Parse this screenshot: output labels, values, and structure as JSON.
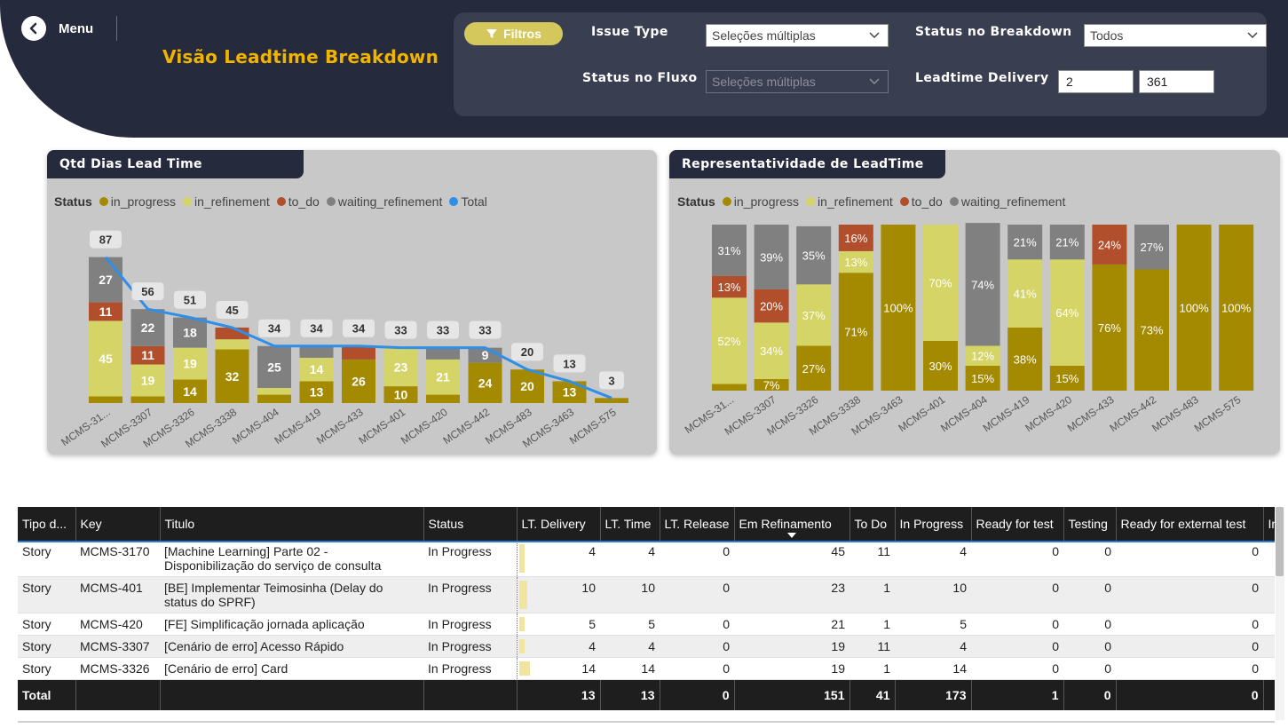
{
  "header": {
    "menu_label": "Menu",
    "page_title": "Visão Leadtime Breakdown",
    "filter_button_label": "Filtros",
    "filters": {
      "issue_type_label": "Issue Type",
      "issue_type_value": "Seleções múltiplas",
      "status_breakdown_label": "Status no Breakdown",
      "status_breakdown_value": "Todos",
      "status_fluxo_label": "Status no Fluxo",
      "status_fluxo_value": "Seleções múltiplas",
      "leadtime_label": "Leadtime Delivery",
      "leadtime_min": "2",
      "leadtime_max": "361"
    }
  },
  "colors": {
    "in_progress": "#a48a00",
    "in_refinement": "#d5d466",
    "to_do": "#b14e2b",
    "waiting_refinement": "#808080",
    "total": "#2f8fe8"
  },
  "chart_data": [
    {
      "type": "bar",
      "stacked": true,
      "title": "Qtd Dias Lead Time",
      "legend_title": "Status",
      "legend_placement": "top-left",
      "categories": [
        "MCMS-31...",
        "MCMS-3307",
        "MCMS-3326",
        "MCMS-3338",
        "MCMS-404",
        "MCMS-419",
        "MCMS-433",
        "MCMS-401",
        "MCMS-420",
        "MCMS-442",
        "MCMS-483",
        "MCMS-3463",
        "MCMS-575"
      ],
      "series": [
        {
          "name": "in_progress",
          "values": [
            4,
            4,
            14,
            32,
            5,
            13,
            26,
            10,
            5,
            24,
            20,
            13,
            3
          ]
        },
        {
          "name": "in_refinement",
          "values": [
            45,
            19,
            19,
            6,
            4,
            14,
            0,
            23,
            21,
            0,
            0,
            0,
            0
          ]
        },
        {
          "name": "to_do",
          "values": [
            11,
            11,
            0,
            7,
            0,
            0,
            8,
            0,
            0,
            0,
            0,
            0,
            0
          ]
        },
        {
          "name": "waiting_refinement",
          "values": [
            27,
            22,
            18,
            0,
            25,
            7,
            0,
            0,
            7,
            9,
            0,
            0,
            0
          ]
        }
      ],
      "segment_labels": {
        "in_progress": [
          "",
          "",
          "14",
          "32",
          "",
          "13",
          "26",
          "10",
          "",
          "24",
          "20",
          "13",
          ""
        ],
        "in_refinement": [
          "45",
          "19",
          "19",
          "",
          "",
          "14",
          "",
          "23",
          "21",
          "",
          "",
          "",
          ""
        ],
        "to_do": [
          "11",
          "11",
          "",
          "",
          "",
          "",
          "",
          "",
          "",
          "",
          "",
          "",
          ""
        ],
        "waiting_refinement": [
          "27",
          "22",
          "18",
          "",
          "25",
          "",
          "",
          "",
          "",
          "9",
          "",
          "",
          ""
        ]
      },
      "total": {
        "name": "Total",
        "values": [
          87,
          56,
          51,
          45,
          34,
          34,
          34,
          33,
          33,
          33,
          20,
          13,
          3
        ]
      },
      "ylim": [
        0,
        95
      ]
    },
    {
      "type": "bar",
      "stacked": true,
      "percent": true,
      "title": "Representatividade de LeadTime",
      "legend_title": "Status",
      "legend_placement": "top-left",
      "categories": [
        "MCMS-31...",
        "MCMS-3307",
        "MCMS-3326",
        "MCMS-3338",
        "MCMS-3463",
        "MCMS-401",
        "MCMS-404",
        "MCMS-419",
        "MCMS-420",
        "MCMS-433",
        "MCMS-442",
        "MCMS-483",
        "MCMS-575"
      ],
      "series": [
        {
          "name": "in_progress",
          "values": [
            4,
            7,
            27,
            71,
            100,
            30,
            15,
            38,
            15,
            76,
            73,
            100,
            100
          ]
        },
        {
          "name": "in_refinement",
          "values": [
            52,
            34,
            37,
            13,
            0,
            70,
            12,
            41,
            64,
            0,
            0,
            0,
            0
          ]
        },
        {
          "name": "to_do",
          "values": [
            13,
            20,
            0,
            16,
            0,
            0,
            0,
            0,
            0,
            24,
            0,
            0,
            0
          ]
        },
        {
          "name": "waiting_refinement",
          "values": [
            31,
            39,
            35,
            0,
            0,
            0,
            74,
            21,
            21,
            0,
            27,
            0,
            0
          ]
        }
      ],
      "segment_labels": {
        "in_progress": [
          "",
          "7%",
          "27%",
          "71%",
          "100%",
          "30%",
          "15%",
          "38%",
          "15%",
          "76%",
          "73%",
          "100%",
          "100%"
        ],
        "in_refinement": [
          "52%",
          "34%",
          "37%",
          "13%",
          "",
          "70%",
          "12%",
          "41%",
          "64%",
          "",
          "",
          "",
          ""
        ],
        "to_do": [
          "13%",
          "20%",
          "",
          "16%",
          "",
          "",
          "",
          "",
          "",
          "24%",
          "",
          "",
          ""
        ],
        "waiting_refinement": [
          "31%",
          "39%",
          "35%",
          "",
          "",
          "",
          "74%",
          "21%",
          "21%",
          "",
          "27%",
          "",
          ""
        ]
      },
      "ylim": [
        0,
        100
      ]
    }
  ],
  "table": {
    "columns": [
      "Tipo d...",
      "Key",
      "Titulo",
      "Status",
      "LT. Delivery",
      "LT. Time",
      "LT. Release",
      "Em Refinamento",
      "To Do",
      "In Progress",
      "Ready for test",
      "Testing",
      "Ready for external test",
      "In"
    ],
    "sorted_column": "Em Refinamento",
    "lt_delivery_max": 87,
    "rows": [
      {
        "tipo": "Story",
        "key": "MCMS-3170",
        "titulo": "[Machine Learning] Parte 02 -",
        "titulo2": "Disponibilização do serviço de consulta",
        "status": "In Progress",
        "lt_delivery": "4",
        "lt_delivery_num": 4,
        "lt_time": "4",
        "lt_release": "0",
        "em_refinamento": "45",
        "to_do": "11",
        "in_progress": "4",
        "ready_for_test": "0",
        "testing": "0",
        "ready_ext": "0"
      },
      {
        "tipo": "Story",
        "key": "MCMS-401",
        "titulo": "[BE] Implementar Teimosinha (Delay do",
        "titulo2": "status do SPRF)",
        "status": "In Progress",
        "lt_delivery": "10",
        "lt_delivery_num": 10,
        "lt_time": "10",
        "lt_release": "0",
        "em_refinamento": "23",
        "to_do": "1",
        "in_progress": "10",
        "ready_for_test": "0",
        "testing": "0",
        "ready_ext": "0"
      },
      {
        "tipo": "Story",
        "key": "MCMS-420",
        "titulo": "[FE] Simplificação jornada aplicação",
        "titulo2": "",
        "status": "In Progress",
        "lt_delivery": "5",
        "lt_delivery_num": 5,
        "lt_time": "5",
        "lt_release": "0",
        "em_refinamento": "21",
        "to_do": "1",
        "in_progress": "5",
        "ready_for_test": "0",
        "testing": "0",
        "ready_ext": "0"
      },
      {
        "tipo": "Story",
        "key": "MCMS-3307",
        "titulo": "[Cenário de erro] Acesso Rápido",
        "titulo2": "",
        "status": "In Progress",
        "lt_delivery": "4",
        "lt_delivery_num": 4,
        "lt_time": "4",
        "lt_release": "0",
        "em_refinamento": "19",
        "to_do": "11",
        "in_progress": "4",
        "ready_for_test": "0",
        "testing": "0",
        "ready_ext": "0"
      },
      {
        "tipo": "Story",
        "key": "MCMS-3326",
        "titulo": "[Cenário de erro] Card",
        "titulo2": "",
        "status": "In Progress",
        "lt_delivery": "14",
        "lt_delivery_num": 14,
        "lt_time": "14",
        "lt_release": "0",
        "em_refinamento": "19",
        "to_do": "1",
        "in_progress": "14",
        "ready_for_test": "0",
        "testing": "0",
        "ready_ext": "0"
      }
    ],
    "total": {
      "label": "Total",
      "lt_delivery": "13",
      "lt_time": "13",
      "lt_release": "0",
      "em_refinamento": "151",
      "to_do": "41",
      "in_progress": "173",
      "ready_for_test": "1",
      "testing": "0",
      "ready_ext": "0"
    }
  }
}
